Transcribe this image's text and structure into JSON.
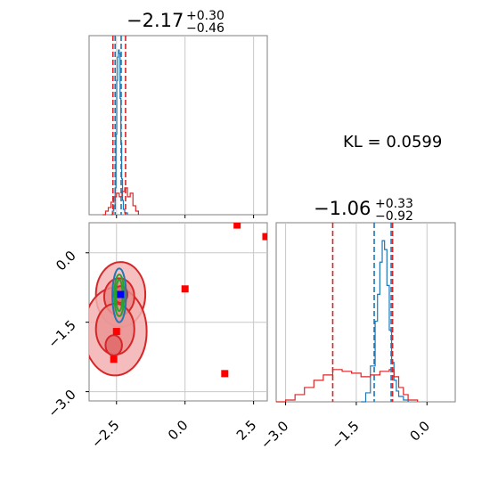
{
  "chart_data": [
    {
      "panel": "marginal-param-1",
      "type": "line",
      "title_main": "−2.17",
      "title_sup": "+0.30",
      "title_sub": "−0.46",
      "xlim": [
        -3.5,
        3.0
      ],
      "xticks": [
        -2.5,
        0.0,
        2.5
      ],
      "grid": true,
      "series": [
        {
          "color": "#1f77b4",
          "x": [
            -2.7,
            -2.65,
            -2.6,
            -2.55,
            -2.52,
            -2.49,
            -2.46,
            -2.43,
            -2.4,
            -2.37,
            -2.34,
            -2.31,
            -2.28,
            -2.25,
            -2.2,
            -2.1
          ],
          "y": [
            0.0,
            0.02,
            0.05,
            0.15,
            0.45,
            0.75,
            0.88,
            0.92,
            0.9,
            0.65,
            0.4,
            0.2,
            0.08,
            0.03,
            0.01,
            0.0
          ]
        },
        {
          "color": "#d62728",
          "x": [
            -3.0,
            -2.9,
            -2.8,
            -2.7,
            -2.6,
            -2.5,
            -2.4,
            -2.3,
            -2.2,
            -2.1,
            -2.0,
            -1.9,
            -1.8,
            -1.7
          ],
          "y": [
            0.0,
            0.02,
            0.04,
            0.07,
            0.1,
            0.12,
            0.1,
            0.13,
            0.15,
            0.1,
            0.12,
            0.05,
            0.02,
            0.0
          ]
        }
      ],
      "vlines": [
        {
          "x": -2.63,
          "color": "#d62728"
        },
        {
          "x": -2.17,
          "color": "#d62728"
        },
        {
          "x": -2.55,
          "color": "#1f77b4"
        },
        {
          "x": -2.33,
          "color": "#1f77b4"
        }
      ]
    },
    {
      "panel": "joint-param-1-2",
      "type": "scatter",
      "xlim": [
        -3.5,
        3.0
      ],
      "ylim": [
        -3.2,
        0.65
      ],
      "xticks": [
        -2.5,
        0.0,
        2.5
      ],
      "yticks": [
        0.0,
        -1.5,
        -3.0
      ],
      "grid": true,
      "points": [
        {
          "x": 0.0,
          "y": -0.78,
          "color": "#ff0000"
        },
        {
          "x": 1.45,
          "y": -2.61,
          "color": "#ff0000"
        },
        {
          "x": 1.9,
          "y": 0.6,
          "color": "#ff0000"
        },
        {
          "x": 2.95,
          "y": 0.35,
          "color": "#ff0000"
        },
        {
          "x": -2.6,
          "y": -2.3,
          "color": "#ff0000"
        },
        {
          "x": -2.5,
          "y": -1.7,
          "color": "#ff0000"
        },
        {
          "x": -2.35,
          "y": -0.9,
          "color": "#0000ff"
        }
      ],
      "contours": [
        {
          "cx": -2.35,
          "cy": -0.9,
          "rx": 0.9,
          "ry": 0.7,
          "color": "#d62728",
          "fill": "#f6b5b5"
        },
        {
          "cx": -2.55,
          "cy": -1.7,
          "rx": 1.15,
          "ry": 0.95,
          "color": "#d62728",
          "fill": "#f2b0b0"
        },
        {
          "cx": -2.4,
          "cy": -0.95,
          "rx": 0.55,
          "ry": 0.4,
          "color": "#d62728",
          "fill": "#e98b8b"
        },
        {
          "cx": -2.55,
          "cy": -1.65,
          "rx": 0.7,
          "ry": 0.55,
          "color": "#d62728",
          "fill": "#ea9494"
        },
        {
          "cx": -2.35,
          "cy": -0.9,
          "rx": 0.25,
          "ry": 0.18,
          "color": "#d62728",
          "fill": "#e06868"
        },
        {
          "cx": -2.6,
          "cy": -2.0,
          "rx": 0.3,
          "ry": 0.22,
          "color": "#d62728",
          "fill": "#e06868"
        },
        {
          "cx": -2.4,
          "cy": -0.92,
          "rx": 0.25,
          "ry": 0.58,
          "color": "#1f77b4",
          "fill": "none"
        },
        {
          "cx": -2.4,
          "cy": -0.92,
          "rx": 0.18,
          "ry": 0.45,
          "color": "#2ca02c",
          "fill": "none"
        },
        {
          "cx": -2.4,
          "cy": -0.92,
          "rx": 0.12,
          "ry": 0.34,
          "color": "#2ca02c",
          "fill": "none"
        }
      ]
    },
    {
      "panel": "marginal-param-2",
      "type": "line",
      "title_main": "−1.06",
      "title_sup": "+0.33",
      "title_sub": "−0.92",
      "xlim": [
        -3.2,
        0.6
      ],
      "xticks": [
        -3.0,
        -1.5,
        0.0
      ],
      "grid": true,
      "series": [
        {
          "color": "#1f77b4",
          "x": [
            -1.4,
            -1.3,
            -1.2,
            -1.1,
            -1.05,
            -1.0,
            -0.95,
            -0.9,
            -0.85,
            -0.8,
            -0.75,
            -0.7,
            -0.65,
            -0.6,
            -0.5,
            -0.4
          ],
          "y": [
            0.0,
            0.05,
            0.2,
            0.45,
            0.6,
            0.78,
            0.9,
            0.85,
            0.65,
            0.4,
            0.22,
            0.12,
            0.06,
            0.03,
            0.01,
            0.0
          ]
        },
        {
          "color": "#d62728",
          "x": [
            -3.2,
            -3.0,
            -2.8,
            -2.6,
            -2.4,
            -2.2,
            -2.0,
            -1.8,
            -1.6,
            -1.4,
            -1.2,
            -1.0,
            -0.8,
            -0.7,
            -0.6,
            -0.5,
            -0.4,
            -0.2
          ],
          "y": [
            0.0,
            0.01,
            0.04,
            0.08,
            0.12,
            0.15,
            0.18,
            0.17,
            0.16,
            0.14,
            0.15,
            0.17,
            0.18,
            0.14,
            0.08,
            0.04,
            0.01,
            0.0
          ]
        }
      ],
      "vlines": [
        {
          "x": -2.0,
          "color": "#d62728"
        },
        {
          "x": -0.73,
          "color": "#d62728"
        },
        {
          "x": -1.12,
          "color": "#1f77b4"
        },
        {
          "x": -0.76,
          "color": "#1f77b4"
        }
      ]
    }
  ],
  "annotation": {
    "kl_text": "KL = 0.0599"
  }
}
